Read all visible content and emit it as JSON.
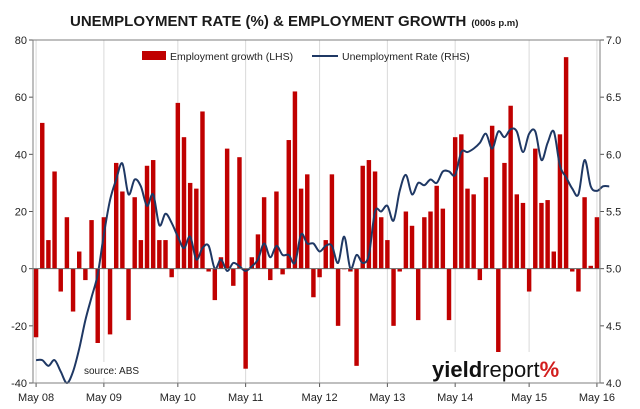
{
  "chart_data": {
    "type": "bar+line",
    "title": "UNEMPLOYMENT RATE (%) & EMPLOYMENT GROWTH",
    "title_suffix": "(000s p.m)",
    "source": "source: ABS",
    "logo": {
      "part1": "yield",
      "part2": "report",
      "mark": "%"
    },
    "x_tick_labels": [
      "May 08",
      "May 09",
      "May 10",
      "May 11",
      "May 12",
      "May 13",
      "May 14",
      "May 15",
      "May 16"
    ],
    "y_left": {
      "ticks": [
        -40,
        -20,
        0,
        20,
        40,
        60,
        80
      ],
      "labels": [
        "-40",
        "-20",
        "0",
        "20",
        "40",
        "60",
        "80"
      ],
      "range": [
        -40,
        80
      ]
    },
    "y_right": {
      "ticks": [
        4.0,
        4.5,
        5.0,
        5.5,
        6.0,
        6.5,
        7.0
      ],
      "labels": [
        "4.0",
        "4.5",
        "5.0",
        "5.5",
        "6.0",
        "6.5",
        "7.0"
      ],
      "range": [
        4.0,
        7.0
      ]
    },
    "grid": "vertical only",
    "legend_position": "top",
    "series": [
      {
        "name": "Employment growth (LHS)",
        "kind": "bar",
        "axis": "left",
        "color": "#c00000",
        "values": [
          -24,
          51,
          10,
          34,
          -8,
          18,
          -15,
          6,
          -4,
          17,
          -26,
          18,
          -23,
          37,
          27,
          -18,
          25,
          10,
          36,
          38,
          10,
          10,
          -3,
          58,
          46,
          30,
          28,
          55,
          -1,
          -11,
          4,
          42,
          -6,
          39,
          -35,
          4,
          12,
          25,
          -4,
          27,
          -2,
          45,
          62,
          28,
          33,
          -10,
          -3,
          10,
          33,
          -20,
          0,
          -1,
          -34,
          36,
          38,
          34,
          18,
          10,
          -20,
          -1,
          20,
          15,
          -18,
          18,
          20,
          29,
          21,
          -18,
          46,
          47,
          28,
          26,
          -4,
          32,
          50,
          -31,
          37,
          57,
          26,
          23,
          -8,
          42,
          23,
          24,
          6,
          47,
          74,
          -1,
          -8,
          25,
          1,
          18
        ]
      },
      {
        "name": "Unemployment Rate (RHS)",
        "kind": "line",
        "axis": "right",
        "color": "#1f3864",
        "values": [
          4.2,
          4.2,
          4.15,
          4.2,
          4.1,
          4.0,
          4.1,
          4.3,
          4.55,
          4.75,
          4.95,
          5.3,
          5.6,
          5.78,
          5.92,
          5.65,
          5.78,
          5.72,
          5.55,
          5.65,
          5.38,
          5.48,
          5.4,
          5.28,
          5.18,
          5.28,
          5.08,
          5.18,
          5.2,
          5.0,
          5.08,
          4.98,
          5.05,
          5.02,
          4.98,
          5.02,
          5.08,
          5.22,
          5.1,
          5.2,
          5.12,
          5.12,
          5.05,
          5.3,
          5.22,
          5.22,
          5.15,
          5.2,
          5.2,
          5.05,
          5.28,
          5.0,
          5.12,
          5.05,
          5.12,
          5.5,
          5.5,
          5.55,
          5.42,
          5.68,
          5.82,
          5.65,
          5.75,
          5.73,
          5.78,
          5.75,
          5.85,
          5.85,
          5.82,
          6.02,
          6.02,
          6.05,
          6.1,
          6.18,
          6.05,
          6.2,
          6.15,
          6.22,
          6.2,
          6.02,
          6.18,
          6.2,
          5.95,
          6.1,
          6.2,
          5.9,
          5.8,
          5.7,
          5.65,
          5.95,
          5.72,
          5.68,
          5.72,
          5.72
        ]
      }
    ]
  }
}
